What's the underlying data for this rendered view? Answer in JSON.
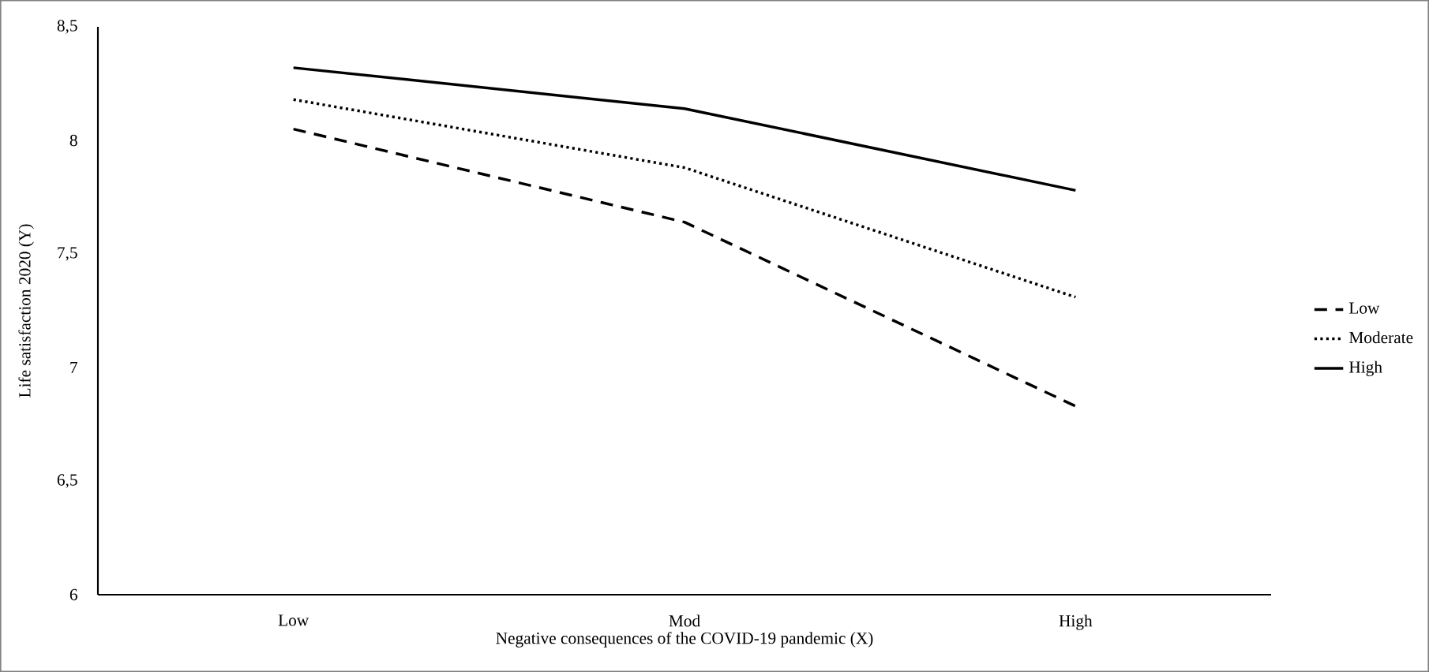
{
  "chart_data": {
    "type": "line",
    "xlabel": "Negative consequences of the COVID-19 pandemic (X)",
    "ylabel": "Life satisfaction 2020 (Y)",
    "categories": [
      "Low",
      "Mod",
      "High"
    ],
    "ylim": [
      6,
      8.5
    ],
    "yticks": [
      6,
      {
        "value": 6.5,
        "label": "6,5"
      },
      7,
      {
        "value": 7.5,
        "label": "7,5"
      },
      8,
      {
        "value": 8.5,
        "label": "8,5"
      }
    ],
    "series": [
      {
        "name": "Low",
        "color": "#000000",
        "line_style": "dashed",
        "values": [
          8.05,
          7.64,
          6.83
        ]
      },
      {
        "name": "Moderate",
        "color": "#000000",
        "line_style": "dotted",
        "values": [
          8.18,
          7.88,
          7.31
        ]
      },
      {
        "name": "High",
        "color": "#000000",
        "line_style": "solid",
        "values": [
          8.32,
          8.14,
          7.78
        ]
      }
    ],
    "grid": false,
    "legend": "right",
    "marker": "none"
  }
}
